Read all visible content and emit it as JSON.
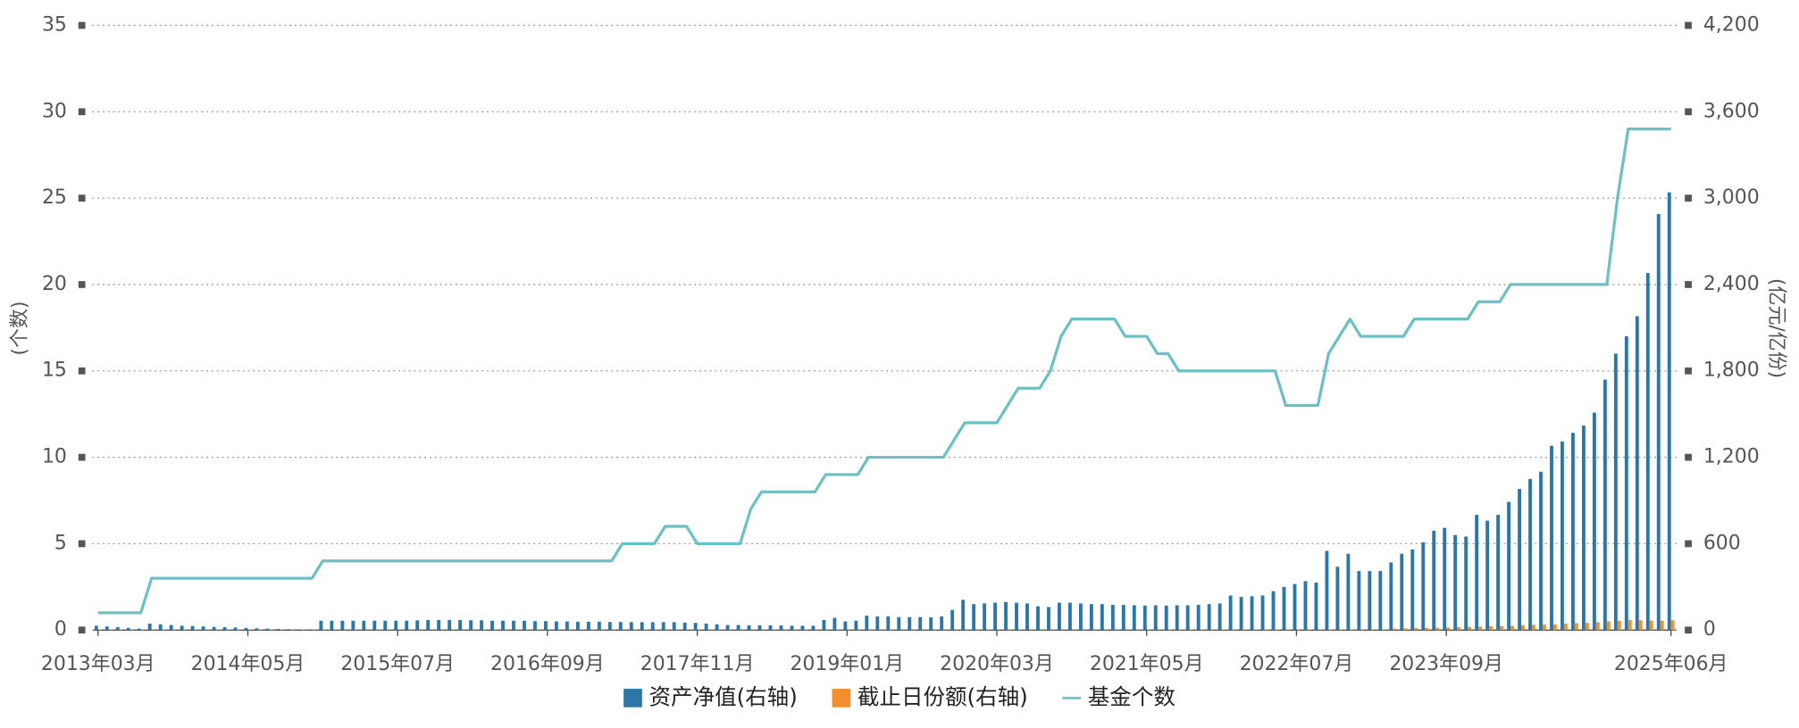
{
  "chart_data": {
    "type": "combo",
    "y_label": "(个数)",
    "y2_label": "(亿元/亿份)",
    "categories": [
      "2013年03月",
      null,
      null,
      null,
      null,
      null,
      null,
      null,
      null,
      null,
      null,
      null,
      null,
      null,
      "2014年05月",
      null,
      null,
      null,
      null,
      null,
      null,
      null,
      null,
      null,
      null,
      null,
      null,
      null,
      "2015年07月",
      null,
      null,
      null,
      null,
      null,
      null,
      null,
      null,
      null,
      null,
      null,
      null,
      null,
      "2016年09月",
      null,
      null,
      null,
      null,
      null,
      null,
      null,
      null,
      null,
      null,
      null,
      null,
      null,
      "2017年11月",
      null,
      null,
      null,
      null,
      null,
      null,
      null,
      null,
      null,
      null,
      null,
      null,
      null,
      "2019年01月",
      null,
      null,
      null,
      null,
      null,
      null,
      null,
      null,
      null,
      null,
      null,
      null,
      null,
      "2020年03月",
      null,
      null,
      null,
      null,
      null,
      null,
      null,
      null,
      null,
      null,
      null,
      null,
      null,
      "2021年05月",
      null,
      null,
      null,
      null,
      null,
      null,
      null,
      null,
      null,
      null,
      null,
      null,
      null,
      "2022年07月",
      null,
      null,
      null,
      null,
      null,
      null,
      null,
      null,
      null,
      null,
      null,
      null,
      null,
      "2023年09月",
      null,
      null,
      null,
      null,
      null,
      null,
      null,
      null,
      null,
      null,
      null,
      null,
      null,
      null,
      null,
      null,
      null,
      null,
      null,
      null,
      "2025年06月"
    ],
    "series": [
      {
        "name": "资产净值(右轴)",
        "type": "bar",
        "axis": "y2",
        "color": "#2c77a7",
        "values": [
          30,
          25,
          20,
          15,
          10,
          45,
          40,
          35,
          30,
          28,
          25,
          22,
          20,
          18,
          15,
          12,
          10,
          8,
          6,
          5,
          5,
          65,
          65,
          65,
          65,
          65,
          65,
          65,
          65,
          65,
          68,
          70,
          70,
          70,
          70,
          68,
          68,
          65,
          65,
          65,
          65,
          62,
          62,
          60,
          60,
          58,
          58,
          58,
          56,
          56,
          55,
          55,
          55,
          55,
          55,
          52,
          50,
          45,
          40,
          35,
          35,
          33,
          33,
          33,
          32,
          30,
          30,
          30,
          70,
          85,
          60,
          65,
          100,
          95,
          95,
          90,
          90,
          90,
          88,
          95,
          140,
          210,
          180,
          185,
          190,
          195,
          190,
          185,
          165,
          160,
          190,
          190,
          185,
          180,
          180,
          175,
          175,
          172,
          170,
          172,
          170,
          172,
          172,
          175,
          180,
          185,
          240,
          230,
          235,
          240,
          270,
          300,
          320,
          340,
          330,
          550,
          440,
          530,
          410,
          410,
          410,
          470,
          530,
          560,
          610,
          690,
          710,
          660,
          650,
          800,
          760,
          800,
          890,
          980,
          1050,
          1100,
          1280,
          1310,
          1370,
          1420,
          1510,
          1740,
          1920,
          2040,
          2180,
          2480,
          2890,
          3040
        ]
      },
      {
        "name": "截止日份额(右轴)",
        "type": "bar",
        "axis": "y2",
        "color": "#f28e2b",
        "values": [
          3,
          3,
          3,
          3,
          3,
          3,
          3,
          3,
          3,
          3,
          3,
          3,
          3,
          3,
          3,
          3,
          3,
          3,
          3,
          3,
          3,
          2,
          2,
          2,
          2,
          2,
          2,
          2,
          2,
          2,
          2,
          2,
          2,
          2,
          2,
          2,
          2,
          2,
          2,
          2,
          2,
          2,
          2,
          2,
          2,
          2,
          2,
          2,
          2,
          2,
          2,
          2,
          2,
          2,
          2,
          2,
          2,
          2,
          2,
          2,
          2,
          2,
          2,
          2,
          2,
          2,
          2,
          2,
          2,
          2,
          2,
          2,
          2,
          2,
          2,
          2,
          2,
          2,
          2,
          2,
          2,
          2,
          2,
          2,
          2,
          2,
          2,
          2,
          2,
          2,
          2,
          2,
          2,
          2,
          2,
          2,
          2,
          2,
          2,
          2,
          5,
          5,
          5,
          5,
          5,
          5,
          5,
          5,
          5,
          5,
          5,
          5,
          5,
          5,
          5,
          5,
          5,
          5,
          5,
          5,
          5,
          10,
          12,
          14,
          15,
          16,
          18,
          20,
          22,
          24,
          26,
          28,
          30,
          33,
          36,
          38,
          40,
          45,
          48,
          50,
          55,
          60,
          65,
          70,
          68,
          66,
          65,
          68
        ]
      },
      {
        "name": "基金个数",
        "type": "line",
        "axis": "y",
        "color": "#6cc0c4",
        "values": [
          1,
          1,
          1,
          1,
          1,
          3,
          3,
          3,
          3,
          3,
          3,
          3,
          3,
          3,
          3,
          3,
          3,
          3,
          3,
          3,
          3,
          4,
          4,
          4,
          4,
          4,
          4,
          4,
          4,
          4,
          4,
          4,
          4,
          4,
          4,
          4,
          4,
          4,
          4,
          4,
          4,
          4,
          4,
          4,
          4,
          4,
          4,
          4,
          4,
          5,
          5,
          5,
          5,
          6,
          6,
          6,
          5,
          5,
          5,
          5,
          5,
          7,
          8,
          8,
          8,
          8,
          8,
          8,
          9,
          9,
          9,
          9,
          10,
          10,
          10,
          10,
          10,
          10,
          10,
          10,
          11,
          12,
          12,
          12,
          12,
          13,
          14,
          14,
          14,
          15,
          17,
          18,
          18,
          18,
          18,
          18,
          17,
          17,
          17,
          16,
          16,
          15,
          15,
          15,
          15,
          15,
          15,
          15,
          15,
          15,
          15,
          13,
          13,
          13,
          13,
          16,
          17,
          18,
          17,
          17,
          17,
          17,
          17,
          18,
          18,
          18,
          18,
          18,
          18,
          19,
          19,
          19,
          20,
          20,
          20,
          20,
          20,
          20,
          20,
          20,
          20,
          20,
          25,
          29,
          29,
          29,
          29,
          29
        ]
      }
    ],
    "ylim": [
      0,
      35
    ],
    "yticks": [
      0,
      5,
      10,
      15,
      20,
      25,
      30,
      35
    ],
    "y2lim": [
      0,
      4200
    ],
    "y2ticks": [
      0,
      600,
      {
        "value": 1200,
        "label": "1,200"
      },
      {
        "value": 1800,
        "label": "1,800"
      },
      {
        "value": 2400,
        "label": "2,400"
      },
      {
        "value": 3000,
        "label": "3,000"
      },
      {
        "value": 3600,
        "label": "3,600"
      },
      {
        "value": 4200,
        "label": "4,200"
      }
    ],
    "grid": true,
    "legend": "bottom"
  }
}
